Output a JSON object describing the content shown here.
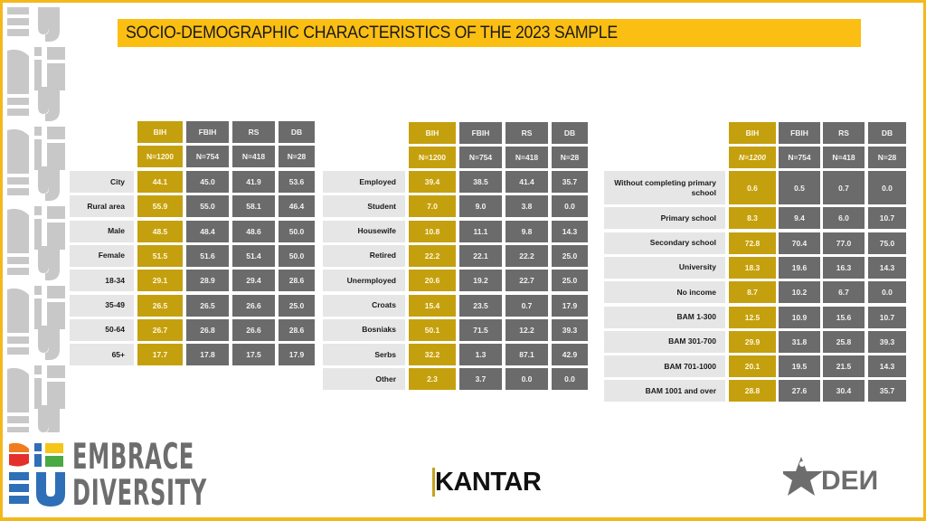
{
  "header": {
    "title": "SOCIO-DEMOGRAPHIC CHARACTERISTICS OF THE 2023 SAMPLE"
  },
  "columns": [
    "BIH",
    "FBIH",
    "RS",
    "DB"
  ],
  "sample_sizes": [
    "N=1200",
    "N=754",
    "N=418",
    "N=28"
  ],
  "tables": [
    {
      "rows": [
        {
          "label": "City",
          "values": [
            "44.1",
            "45.0",
            "41.9",
            "53.6"
          ]
        },
        {
          "label": "Rural area",
          "values": [
            "55.9",
            "55.0",
            "58.1",
            "46.4"
          ]
        },
        {
          "label": "Male",
          "values": [
            "48.5",
            "48.4",
            "48.6",
            "50.0"
          ]
        },
        {
          "label": "Female",
          "values": [
            "51.5",
            "51.6",
            "51.4",
            "50.0"
          ]
        },
        {
          "label": "18-34",
          "values": [
            "29.1",
            "28.9",
            "29.4",
            "28.6"
          ]
        },
        {
          "label": "35-49",
          "values": [
            "26.5",
            "26.5",
            "26.6",
            "25.0"
          ]
        },
        {
          "label": "50-64",
          "values": [
            "26.7",
            "26.8",
            "26.6",
            "28.6"
          ]
        },
        {
          "label": "65+",
          "values": [
            "17.7",
            "17.8",
            "17.5",
            "17.9"
          ]
        }
      ]
    },
    {
      "rows": [
        {
          "label": "Employed",
          "values": [
            "39.4",
            "38.5",
            "41.4",
            "35.7"
          ]
        },
        {
          "label": "Student",
          "values": [
            "7.0",
            "9.0",
            "3.8",
            "0.0"
          ]
        },
        {
          "label": "Housewife",
          "values": [
            "10.8",
            "11.1",
            "9.8",
            "14.3"
          ]
        },
        {
          "label": "Retired",
          "values": [
            "22.2",
            "22.1",
            "22.2",
            "25.0"
          ]
        },
        {
          "label": "Unermployed",
          "values": [
            "20.6",
            "19.2",
            "22.7",
            "25.0"
          ]
        },
        {
          "label": "Croats",
          "values": [
            "15.4",
            "23.5",
            "0.7",
            "17.9"
          ]
        },
        {
          "label": "Bosniaks",
          "values": [
            "50.1",
            "71.5",
            "12.2",
            "39.3"
          ]
        },
        {
          "label": "Serbs",
          "values": [
            "32.2",
            "1.3",
            "87.1",
            "42.9"
          ]
        },
        {
          "label": "Other",
          "values": [
            "2.3",
            "3.7",
            "0.0",
            "0.0"
          ]
        }
      ]
    },
    {
      "rows": [
        {
          "label": "Without completing primary school",
          "values": [
            "0.6",
            "0.5",
            "0.7",
            "0.0"
          ]
        },
        {
          "label": "Primary school",
          "values": [
            "8.3",
            "9.4",
            "6.0",
            "10.7"
          ]
        },
        {
          "label": "Secondary school",
          "values": [
            "72.8",
            "70.4",
            "77.0",
            "75.0"
          ]
        },
        {
          "label": "University",
          "values": [
            "18.3",
            "19.6",
            "16.3",
            "14.3"
          ]
        },
        {
          "label": "No income",
          "values": [
            "8.7",
            "10.2",
            "6.7",
            "0.0"
          ]
        },
        {
          "label": "BAM 1-300",
          "values": [
            "12.5",
            "10.9",
            "15.6",
            "10.7"
          ]
        },
        {
          "label": "BAM 301-700",
          "values": [
            "29.9",
            "31.8",
            "25.8",
            "39.3"
          ]
        },
        {
          "label": "BAM 701-1000",
          "values": [
            "20.1",
            "19.5",
            "21.5",
            "14.3"
          ]
        },
        {
          "label": "BAM 1001 and over",
          "values": [
            "28.8",
            "27.6",
            "30.4",
            "35.7"
          ]
        }
      ]
    }
  ],
  "footer": {
    "embrace_logo": [
      "EMBRACE",
      "DIVERSITY"
    ],
    "kantar_logo": "KANTAR",
    "iden_logo": "DEN"
  },
  "colors": {
    "accent_yellow": "#fbbe12",
    "bih_column": "#c5a00e",
    "other_columns": "#6b6b6b",
    "label_cells": "#e6e6e6",
    "frame": "#f2b81e"
  }
}
